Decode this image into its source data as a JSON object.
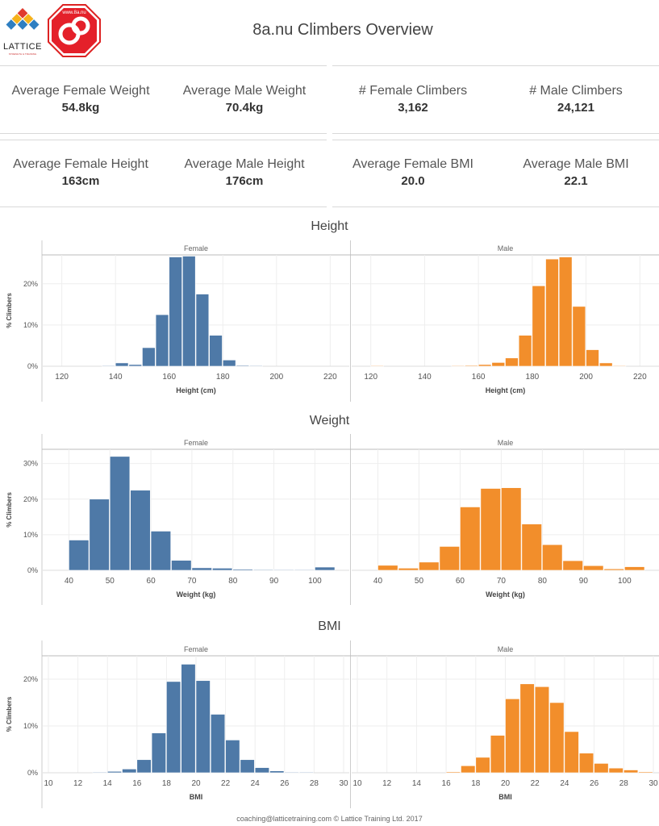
{
  "header": {
    "title": "8a.nu Climbers Overview",
    "logo_text": "LATTICE",
    "logo_subtext": "STRENGTH & TRAINING",
    "badge_url": "www.8a.nu",
    "badge_text": "8a"
  },
  "kpis": {
    "row1": [
      {
        "label": "Average Female Weight",
        "value": "54.8kg"
      },
      {
        "label": "Average Male Weight",
        "value": "70.4kg"
      },
      {
        "label": "# Female Climbers",
        "value": "3,162"
      },
      {
        "label": "# Male Climbers",
        "value": "24,121"
      }
    ],
    "row2": [
      {
        "label": "Average Female Height",
        "value": "163cm"
      },
      {
        "label": "Average Male Height",
        "value": "176cm"
      },
      {
        "label": "Average Female BMI",
        "value": "20.0"
      },
      {
        "label": "Average Male BMI",
        "value": "22.1"
      }
    ]
  },
  "colors": {
    "female": "#4e79a7",
    "male": "#f28e2b"
  },
  "footer": "coaching@latticetraining.com © Lattice Training Ltd. 2017",
  "chart_data": [
    {
      "type": "bar",
      "title": "Height",
      "xlabel": "Height (cm)",
      "ylabel": "% Climbers",
      "facets": [
        "Female",
        "Male"
      ],
      "xlim": [
        115,
        225
      ],
      "xticks": [
        "120",
        "140",
        "160",
        "180",
        "200",
        "220"
      ],
      "ylim": [
        0,
        27
      ],
      "yticks": [
        "0%",
        "10%",
        "20%"
      ],
      "bin_width": 5,
      "bin_starts": [
        120,
        125,
        130,
        135,
        140,
        145,
        150,
        155,
        160,
        165,
        170,
        175,
        180,
        185,
        190,
        195,
        200,
        205,
        210,
        215,
        220
      ],
      "series": [
        {
          "name": "Female",
          "values": [
            0,
            0,
            0,
            0.1,
            0.8,
            0.4,
            4.5,
            12.5,
            26.5,
            26.7,
            17.5,
            7.5,
            1.5,
            0.2,
            0.1,
            0,
            0,
            0,
            0,
            0,
            0
          ]
        },
        {
          "name": "Male",
          "values": [
            0.1,
            0,
            0,
            0,
            0,
            0,
            0.1,
            0.2,
            0.4,
            0.9,
            2.0,
            7.5,
            19.5,
            26.0,
            26.5,
            14.5,
            4.0,
            0.8,
            0.1,
            0,
            0
          ]
        }
      ]
    },
    {
      "type": "bar",
      "title": "Weight",
      "xlabel": "Weight (kg)",
      "ylabel": "% Climbers",
      "facets": [
        "Female",
        "Male"
      ],
      "xlim": [
        35,
        107
      ],
      "xticks": [
        "40",
        "50",
        "60",
        "70",
        "80",
        "90",
        "100"
      ],
      "ylim": [
        0,
        34
      ],
      "yticks": [
        "0%",
        "10%",
        "20%",
        "30%"
      ],
      "bin_width": 5,
      "bin_starts": [
        40,
        45,
        50,
        55,
        60,
        65,
        70,
        75,
        80,
        85,
        90,
        95,
        100
      ],
      "series": [
        {
          "name": "Female",
          "values": [
            8.5,
            20.0,
            32.0,
            22.5,
            11.0,
            2.8,
            0.7,
            0.6,
            0.3,
            0.2,
            0.1,
            0.1,
            0.9
          ]
        },
        {
          "name": "Male",
          "values": [
            1.4,
            0.6,
            2.3,
            6.7,
            17.8,
            23.0,
            23.2,
            13.0,
            7.2,
            2.7,
            1.3,
            0.4,
            1.0
          ]
        }
      ]
    },
    {
      "type": "bar",
      "title": "BMI",
      "xlabel": "BMI",
      "ylabel": "% Climbers",
      "facets": [
        "Female",
        "Male"
      ],
      "xlim": [
        10,
        30
      ],
      "xticks": [
        "10",
        "12",
        "14",
        "16",
        "18",
        "20",
        "22",
        "24",
        "26",
        "28",
        "30"
      ],
      "ylim": [
        0,
        25
      ],
      "yticks": [
        "0%",
        "10%",
        "20%"
      ],
      "bin_width": 1,
      "bin_starts": [
        13,
        14,
        15,
        16,
        17,
        18,
        19,
        20,
        21,
        22,
        23,
        24,
        25,
        26,
        27,
        28,
        29
      ],
      "series": [
        {
          "name": "Female",
          "values": [
            0.1,
            0.3,
            0.8,
            2.8,
            8.5,
            19.5,
            23.2,
            19.7,
            12.5,
            7.0,
            2.8,
            1.1,
            0.4,
            0.1,
            0.1,
            0,
            0
          ]
        },
        {
          "name": "Male",
          "values": [
            0,
            0,
            0,
            0.2,
            1.5,
            3.3,
            8.0,
            15.8,
            19.0,
            18.4,
            15.0,
            8.8,
            4.2,
            2.0,
            1.0,
            0.6,
            0.2
          ]
        }
      ]
    }
  ]
}
